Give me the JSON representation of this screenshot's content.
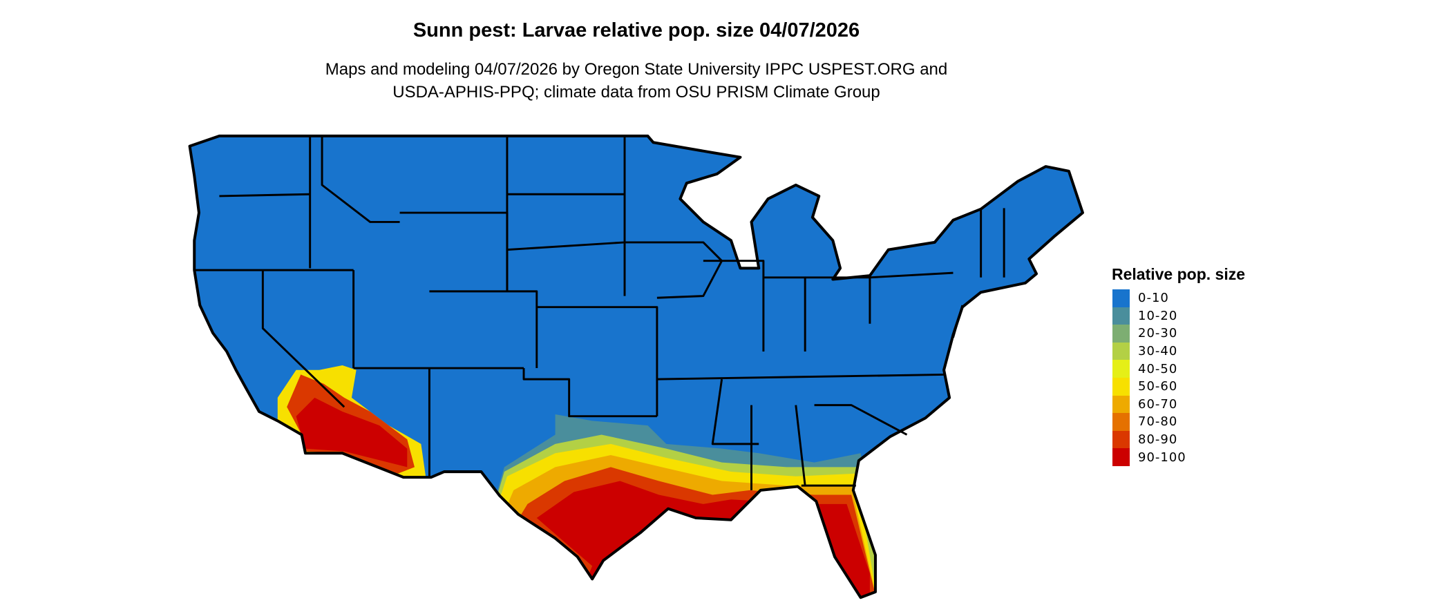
{
  "title": "Sunn pest: Larvae relative pop. size 04/07/2026",
  "subtitle": [
    "Maps and modeling 04/07/2026 by Oregon State University IPPC USPEST.ORG and",
    "USDA-APHIS-PPQ; climate data from OSU PRISM Climate Group"
  ],
  "legend": {
    "title": "Relative pop. size",
    "items": [
      {
        "label": "0-10",
        "color": "#1874CD"
      },
      {
        "label": "10-20",
        "color": "#4A8E9C"
      },
      {
        "label": "20-30",
        "color": "#7DAE72"
      },
      {
        "label": "30-40",
        "color": "#B3D045"
      },
      {
        "label": "40-50",
        "color": "#E5EF17"
      },
      {
        "label": "50-60",
        "color": "#F7E000"
      },
      {
        "label": "60-70",
        "color": "#EEAA00"
      },
      {
        "label": "70-80",
        "color": "#E57100"
      },
      {
        "label": "80-90",
        "color": "#DA3800"
      },
      {
        "label": "90-100",
        "color": "#CC0000"
      }
    ]
  },
  "map": {
    "region": "Contiguous United States",
    "boundary_color": "#000000",
    "background_class": "0-10",
    "high_classes_regions": [
      "Gulf Coast",
      "Texas",
      "Florida",
      "southern Arizona",
      "southern California"
    ]
  }
}
